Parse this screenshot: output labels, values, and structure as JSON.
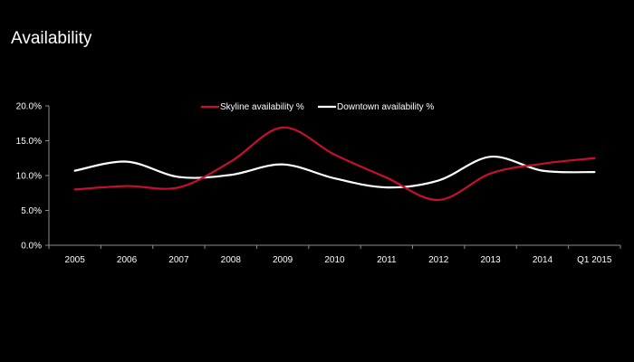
{
  "page": {
    "title": "Availability"
  },
  "chart_data": {
    "type": "line",
    "title": "Availability",
    "categories": [
      "2005",
      "2006",
      "2007",
      "2008",
      "2009",
      "2010",
      "2011",
      "2012",
      "2013",
      "2014",
      "Q1 2015"
    ],
    "series": [
      {
        "name": "Skyline availability %",
        "color": "#c8102e",
        "values": [
          8.0,
          8.5,
          8.3,
          12.0,
          16.9,
          13.0,
          9.7,
          6.5,
          10.3,
          11.7,
          12.5
        ]
      },
      {
        "name": "Downtown availability %",
        "color": "#ffffff",
        "values": [
          10.7,
          12.0,
          9.8,
          10.1,
          11.6,
          9.6,
          8.3,
          9.3,
          12.7,
          10.7,
          10.5
        ]
      }
    ],
    "ylim": [
      0,
      20
    ],
    "yticks": [
      "0.0%",
      "5.0%",
      "10.0%",
      "15.0%",
      "20.0%"
    ],
    "ytick_values": [
      0,
      5,
      10,
      15,
      20
    ],
    "legend": "top-center",
    "grid": false,
    "xlabel": "",
    "ylabel": ""
  }
}
